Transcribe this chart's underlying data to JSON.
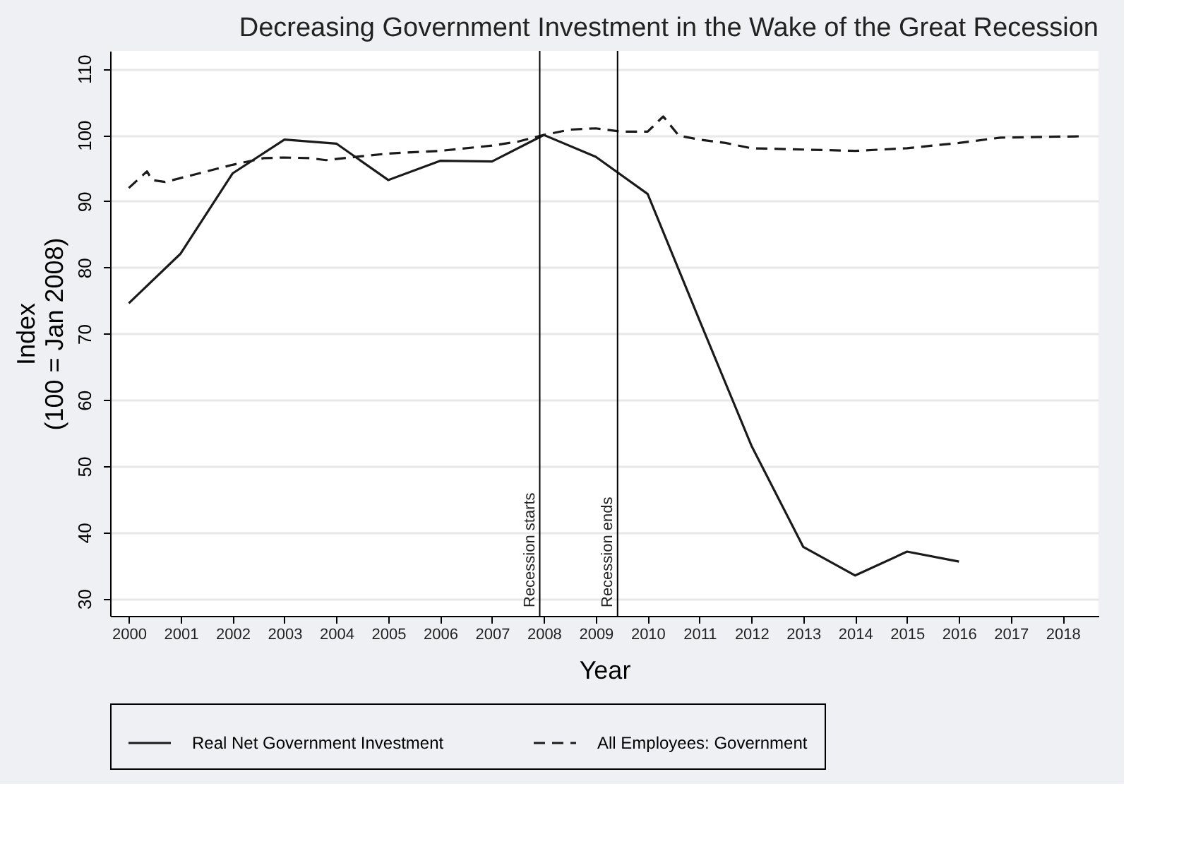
{
  "chart_data": {
    "type": "line",
    "title": "Decreasing Government Investment in the Wake of the Great Recession",
    "xlabel": "Year",
    "ylabel": "Index\n(100 = Jan 2008)",
    "xlim": [
      1999.64,
      2018.69
    ],
    "xticks": [
      2000,
      2001,
      2002,
      2003,
      2004,
      2005,
      2006,
      2007,
      2008,
      2009,
      2010,
      2011,
      2012,
      2013,
      2014,
      2015,
      2016,
      2017,
      2018
    ],
    "ylim": [
      27.4,
      112.7
    ],
    "yticks": [
      30,
      40,
      50,
      60,
      70,
      80,
      90,
      100,
      110
    ],
    "grid": "y",
    "legend": "bottom",
    "marker": "none",
    "series": [
      {
        "name": "Real Net Government Investment",
        "color": "#1a1a1a",
        "line_style": "solid",
        "x": [
          2000,
          2001,
          2002,
          2003,
          2004,
          2005,
          2006,
          2007,
          2008,
          2009,
          2010,
          2011,
          2012,
          2013,
          2014,
          2015,
          2016
        ],
        "values": [
          74.6,
          82.1,
          94.2,
          99.3,
          98.7,
          93.2,
          96.1,
          96.0,
          100,
          96.7,
          91.1,
          72,
          53.1,
          37.8,
          33.5,
          37.1,
          35.6
        ]
      },
      {
        "name": "All Employees: Government",
        "color": "#1a1a1a",
        "line_style": "dashed",
        "x": [
          2000,
          2000.35,
          2000.45,
          2000.7,
          2001,
          2002,
          2002.6,
          2003,
          2003.5,
          2003.8,
          2004.5,
          2005,
          2006,
          2007,
          2007.5,
          2008,
          2008.5,
          2009,
          2009.5,
          2010,
          2010.3,
          2010.6,
          2011,
          2011.5,
          2012,
          2013,
          2014,
          2015,
          2016,
          2016.8,
          2018.33
        ],
        "values": [
          92,
          94.5,
          93.2,
          92.9,
          93.5,
          95.5,
          96.5,
          96.6,
          96.5,
          96.2,
          96.8,
          97.2,
          97.6,
          98.4,
          99.0,
          100,
          100.8,
          101,
          100.5,
          100.5,
          102.8,
          99.9,
          99.3,
          98.8,
          98.0,
          97.8,
          97.6,
          98.0,
          98.8,
          99.6,
          99.8
        ]
      }
    ],
    "ref_lines": [
      {
        "axis": "x",
        "value": 2007.92,
        "label": "Recession starts"
      },
      {
        "axis": "x",
        "value": 2009.42,
        "label": "Recession ends"
      }
    ]
  }
}
